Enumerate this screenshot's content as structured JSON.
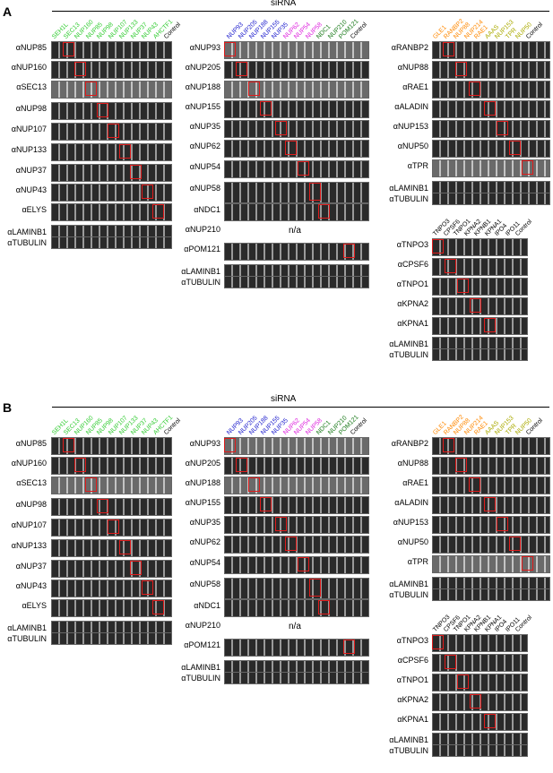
{
  "panels": [
    {
      "letter": "A",
      "sirna": "siRNA",
      "col1_headers": [
        "SEH1L",
        "SEC13",
        "NUP160",
        "NUP85",
        "NUP98",
        "NUP107",
        "NUP133",
        "NUP37",
        "NUP43",
        "AHCTF1",
        "Control"
      ],
      "col1_rows": [
        "αNUP85",
        "αNUP160",
        "αSEC13",
        "αNUP98",
        "αNUP107",
        "αNUP133",
        "αNUP37",
        "αNUP43",
        "αELYS",
        "αLAMINB1",
        "αTUBULIN"
      ],
      "col2_headers": [
        "NUP93",
        "NUP205",
        "NUP188",
        "NUP155",
        "NUP35",
        "NUP62",
        "NUP54",
        "NUP58",
        "NDC1",
        "NUP210",
        "POM121",
        "Control"
      ],
      "col2_rows": [
        "αNUP93",
        "αNUP205",
        "αNUP188",
        "αNUP155",
        "αNUP35",
        "αNUP62",
        "αNUP54",
        "αNUP58",
        "αNDC1",
        "αNUP210",
        "αPOM121",
        "αLAMINB1",
        "αTUBULIN"
      ],
      "na": "n/a",
      "col3_headers": [
        "GLE1",
        "RANBP2",
        "NUP88",
        "NUP214",
        "RAE1",
        "AAAS",
        "NUP153",
        "TPR",
        "NUP50",
        "Control"
      ],
      "col3_rows": [
        "αRANBP2",
        "αNUP88",
        "αRAE1",
        "αALADIN",
        "αNUP153",
        "αNUP50",
        "αTPR",
        "αLAMINB1",
        "αTUBULIN"
      ],
      "col4_headers": [
        "TNPO3",
        "CPSF6",
        "TNPO1",
        "KPNA2",
        "KPNB1",
        "KPNA1",
        "IPO4",
        "IPO11",
        "Control"
      ],
      "col4_rows": [
        "αTNPO3",
        "αCPSF6",
        "αTNPO1",
        "αKPNA2",
        "αKPNA1",
        "αLAMINB1",
        "αTUBULIN"
      ]
    },
    {
      "letter": "B",
      "sirna": "siRNA",
      "col1_headers": [
        "SEH1L",
        "SEC13",
        "NUP160",
        "NUP85",
        "NUP98",
        "NUP107",
        "NUP133",
        "NUP37",
        "NUP43",
        "AHCTF1",
        "Control"
      ],
      "col1_rows": [
        "αNUP85",
        "αNUP160",
        "αSEC13",
        "αNUP98",
        "αNUP107",
        "αNUP133",
        "αNUP37",
        "αNUP43",
        "αELYS",
        "αLAMINB1",
        "αTUBULIN"
      ],
      "col2_headers": [
        "NUP93",
        "NUP205",
        "NUP188",
        "NUP155",
        "NUP35",
        "NUP62",
        "NUP54",
        "NUP58",
        "NDC1",
        "NUP210",
        "POM121",
        "Control"
      ],
      "col2_rows": [
        "αNUP93",
        "αNUP205",
        "αNUP188",
        "αNUP155",
        "αNUP35",
        "αNUP62",
        "αNUP54",
        "αNUP58",
        "αNDC1",
        "αNUP210",
        "αPOM121",
        "αLAMINB1",
        "αTUBULIN"
      ],
      "na": "n/a",
      "col3_headers": [
        "GLE1",
        "RANBP2",
        "NUP88",
        "NUP214",
        "RAE1",
        "AAAS",
        "NUP153",
        "TPR",
        "NUP50",
        "Control"
      ],
      "col3_rows": [
        "αRANBP2",
        "αNUP88",
        "αRAE1",
        "αALADIN",
        "αNUP153",
        "αNUP50",
        "αTPR",
        "αLAMINB1",
        "αTUBULIN"
      ],
      "col4_headers": [
        "TNPO3",
        "CPSF6",
        "TNPO1",
        "KPNA2",
        "KPNB1",
        "KPNA1",
        "IPO4",
        "IPO11",
        "Control"
      ],
      "col4_rows": [
        "αTNPO3",
        "αCPSF6",
        "αTNPO1",
        "αKPNA2",
        "αKPNA1",
        "αLAMINB1",
        "αTUBULIN"
      ]
    }
  ],
  "colors": {
    "green": "#33cc33",
    "dark_green": "#1a7a1a",
    "blue": "#1a1acc",
    "magenta": "#dd22dd",
    "orange": "#ff8800",
    "olive": "#aaaa00",
    "black": "#000000",
    "highlight_box": "#e01b1b"
  }
}
